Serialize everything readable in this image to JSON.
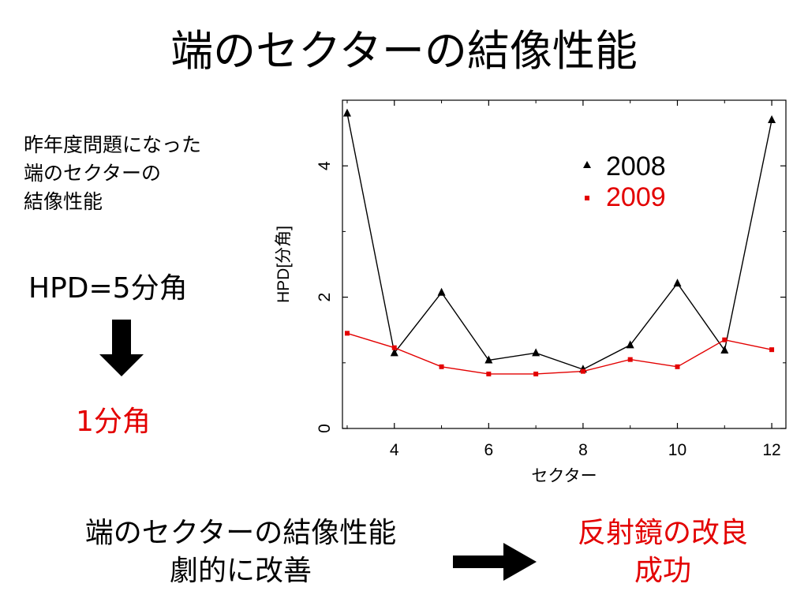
{
  "title": "端のセクターの結像性能",
  "note_lines": [
    "昨年度問題になった",
    "端のセクターの",
    "結像性能"
  ],
  "hpd_before": "HPD=5分角",
  "hpd_after": "1分角",
  "bottom_left_lines": [
    "端のセクターの結像性能",
    "劇的に改善"
  ],
  "bottom_right_lines": [
    "反射鏡の改良",
    "成功"
  ],
  "colors": {
    "series_2008": "#000000",
    "series_2009": "#e30000",
    "accent": "#e30000"
  },
  "icons": {
    "down_arrow": "down-arrow-icon",
    "right_arrow": "right-arrow-icon"
  },
  "chart_data": {
    "type": "line",
    "xlabel": "セクター",
    "ylabel": "HPD[分角]",
    "xlim": [
      2.9,
      12.3
    ],
    "ylim": [
      0,
      5.0
    ],
    "x_ticks": [
      4,
      6,
      8,
      10,
      12
    ],
    "x_tick_labels": [
      "4",
      "6",
      "8",
      "10",
      "12"
    ],
    "y_ticks": [
      0,
      2,
      4
    ],
    "y_tick_labels": [
      "0",
      "2",
      "4"
    ],
    "grid": false,
    "legend_position": "top-right",
    "series": [
      {
        "name": "2008",
        "marker": "triangle",
        "x": [
          3,
          4,
          5,
          6,
          7,
          8,
          9,
          10,
          11,
          12
        ],
        "y": [
          4.8,
          1.15,
          2.07,
          1.04,
          1.15,
          0.9,
          1.27,
          2.21,
          1.19,
          4.7
        ]
      },
      {
        "name": "2009",
        "marker": "square",
        "x": [
          3,
          4,
          5,
          6,
          7,
          8,
          9,
          10,
          11,
          12
        ],
        "y": [
          1.45,
          1.23,
          0.94,
          0.83,
          0.83,
          0.87,
          1.05,
          0.94,
          1.35,
          1.2
        ]
      }
    ]
  }
}
